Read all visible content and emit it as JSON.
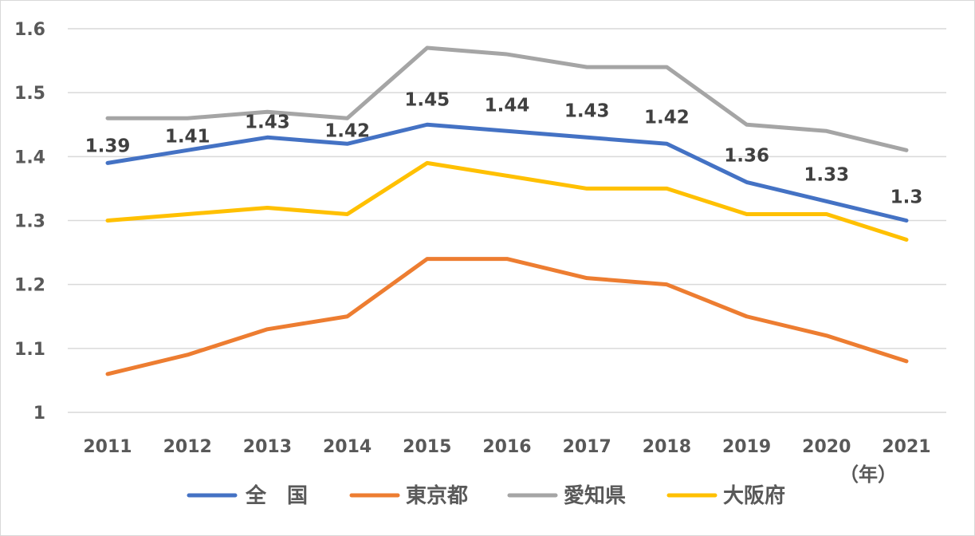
{
  "chart_data": {
    "type": "line",
    "x": [
      "2011",
      "2012",
      "2013",
      "2014",
      "2015",
      "2016",
      "2017",
      "2018",
      "2019",
      "2020",
      "2021"
    ],
    "xlabel": "（年）",
    "ylim": [
      1,
      1.6
    ],
    "yticks": [
      "1",
      "1.1",
      "1.2",
      "1.3",
      "1.4",
      "1.5",
      "1.6"
    ],
    "grid": true,
    "legend_position": "bottom",
    "series": [
      {
        "name": "全　国",
        "color": "#4472C4",
        "values": [
          1.39,
          1.41,
          1.43,
          1.42,
          1.45,
          1.44,
          1.43,
          1.42,
          1.36,
          1.33,
          1.3
        ],
        "data_labels": [
          "1.39",
          "1.41",
          "1.43",
          "1.42",
          "1.45",
          "1.44",
          "1.43",
          "1.42",
          "1.36",
          "1.33",
          "1.3"
        ]
      },
      {
        "name": "東京都",
        "color": "#ED7D31",
        "values": [
          1.06,
          1.09,
          1.13,
          1.15,
          1.24,
          1.24,
          1.21,
          1.2,
          1.15,
          1.12,
          1.08
        ]
      },
      {
        "name": "愛知県",
        "color": "#A5A5A5",
        "values": [
          1.46,
          1.46,
          1.47,
          1.46,
          1.57,
          1.56,
          1.54,
          1.54,
          1.45,
          1.44,
          1.41
        ]
      },
      {
        "name": "大阪府",
        "color": "#FFC000",
        "values": [
          1.3,
          1.31,
          1.32,
          1.31,
          1.39,
          1.37,
          1.35,
          1.35,
          1.31,
          1.31,
          1.27
        ]
      }
    ]
  }
}
